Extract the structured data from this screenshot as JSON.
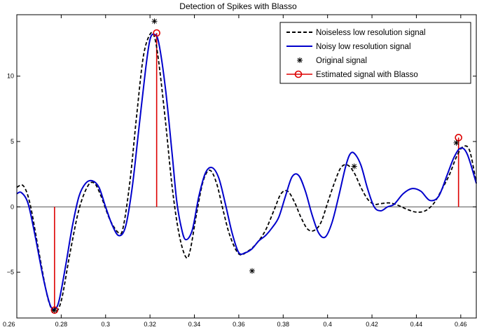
{
  "chart_data": {
    "type": "line",
    "title": "Detection of Spikes with Blasso",
    "xlabel": "",
    "ylabel": "",
    "xlim": [
      0.26,
      0.467
    ],
    "ylim": [
      -8.5,
      14.7
    ],
    "xticks": [
      0.26,
      0.28,
      0.3,
      0.32,
      0.34,
      0.36,
      0.38,
      0.4,
      0.42,
      0.44,
      0.46
    ],
    "xtick_labels": [
      "0.26",
      "0.28",
      "0.3",
      "0.32",
      "0.34",
      "0.36",
      "0.38",
      "0.4",
      "0.42",
      "0.44",
      "0.46"
    ],
    "yticks": [
      -5,
      0,
      5,
      10
    ],
    "ytick_labels": [
      "−5",
      "0",
      "5",
      "10"
    ],
    "legend_position": "top-right",
    "grid": false,
    "series": [
      {
        "name": "Noiseless low resolution signal",
        "style": "dashed",
        "color": "#000000",
        "x": [
          0.26,
          0.263,
          0.266,
          0.27,
          0.274,
          0.277,
          0.28,
          0.284,
          0.288,
          0.292,
          0.295,
          0.298,
          0.302,
          0.306,
          0.308,
          0.311,
          0.314,
          0.317,
          0.32,
          0.322,
          0.324,
          0.327,
          0.33,
          0.333,
          0.336,
          0.338,
          0.341,
          0.344,
          0.347,
          0.35,
          0.353,
          0.356,
          0.36,
          0.364,
          0.368,
          0.372,
          0.376,
          0.379,
          0.382,
          0.385,
          0.388,
          0.391,
          0.394,
          0.397,
          0.4,
          0.403,
          0.406,
          0.409,
          0.412,
          0.415,
          0.418,
          0.421,
          0.424,
          0.428,
          0.432,
          0.436,
          0.44,
          0.444,
          0.448,
          0.452,
          0.455,
          0.458,
          0.461,
          0.464,
          0.467
        ],
        "y": [
          1.5,
          1.6,
          0.2,
          -3.5,
          -7.0,
          -8.0,
          -7.2,
          -3.5,
          -0.2,
          1.6,
          1.8,
          0.8,
          -1.0,
          -2.0,
          -1.5,
          2.0,
          7.0,
          11.5,
          13.2,
          13.0,
          11.0,
          6.5,
          1.5,
          -2.0,
          -3.8,
          -3.4,
          -0.5,
          2.0,
          2.8,
          1.8,
          -0.3,
          -2.2,
          -3.6,
          -3.4,
          -2.8,
          -1.8,
          -0.2,
          1.0,
          1.2,
          0.4,
          -0.8,
          -1.7,
          -1.8,
          -1.2,
          0.3,
          1.8,
          3.0,
          3.2,
          2.6,
          1.5,
          0.6,
          0.2,
          0.25,
          0.3,
          0.1,
          -0.2,
          -0.4,
          -0.3,
          0.3,
          1.5,
          2.5,
          3.8,
          4.6,
          4.3,
          1.8
        ]
      },
      {
        "name": "Noisy low resolution signal",
        "style": "solid",
        "color": "#0000cc",
        "x": [
          0.26,
          0.262,
          0.265,
          0.268,
          0.272,
          0.275,
          0.277,
          0.279,
          0.282,
          0.285,
          0.288,
          0.291,
          0.294,
          0.297,
          0.3,
          0.303,
          0.306,
          0.309,
          0.312,
          0.315,
          0.318,
          0.32,
          0.322,
          0.324,
          0.327,
          0.33,
          0.332,
          0.334,
          0.336,
          0.339,
          0.342,
          0.345,
          0.348,
          0.351,
          0.354,
          0.357,
          0.36,
          0.363,
          0.366,
          0.369,
          0.372,
          0.375,
          0.378,
          0.381,
          0.384,
          0.387,
          0.39,
          0.393,
          0.396,
          0.399,
          0.402,
          0.405,
          0.408,
          0.41,
          0.412,
          0.415,
          0.418,
          0.421,
          0.424,
          0.427,
          0.43,
          0.434,
          0.438,
          0.442,
          0.446,
          0.45,
          0.454,
          0.457,
          0.46,
          0.463,
          0.467
        ],
        "y": [
          1.0,
          1.1,
          0.3,
          -2.0,
          -5.5,
          -7.5,
          -7.8,
          -7.2,
          -4.5,
          -1.5,
          0.8,
          1.8,
          2.0,
          1.5,
          0.0,
          -1.4,
          -2.2,
          -1.5,
          1.5,
          6.0,
          10.5,
          12.8,
          13.2,
          12.5,
          9.0,
          4.0,
          0.5,
          -1.5,
          -2.5,
          -1.8,
          0.8,
          2.6,
          3.0,
          2.2,
          0.2,
          -2.0,
          -3.5,
          -3.5,
          -3.2,
          -2.6,
          -2.2,
          -1.6,
          -0.8,
          0.8,
          2.3,
          2.4,
          1.2,
          -0.6,
          -2.0,
          -2.3,
          -1.2,
          0.8,
          3.0,
          4.0,
          4.1,
          3.2,
          1.4,
          0.0,
          -0.3,
          0.0,
          0.2,
          1.0,
          1.4,
          1.2,
          0.5,
          0.8,
          2.5,
          3.8,
          4.5,
          4.0,
          1.8
        ]
      }
    ],
    "original_signal": {
      "name": "Original signal",
      "marker": "asterisk",
      "color": "#000000",
      "points": [
        [
          0.277,
          -7.9
        ],
        [
          0.322,
          14.2
        ],
        [
          0.366,
          -4.9
        ],
        [
          0.412,
          3.1
        ],
        [
          0.458,
          4.9
        ]
      ]
    },
    "estimated_signal": {
      "name": "Estimated signal with Blasso",
      "marker": "circle",
      "color": "#dd0000",
      "points": [
        [
          0.277,
          -7.9
        ],
        [
          0.323,
          13.3
        ],
        [
          0.459,
          5.3
        ]
      ]
    }
  }
}
